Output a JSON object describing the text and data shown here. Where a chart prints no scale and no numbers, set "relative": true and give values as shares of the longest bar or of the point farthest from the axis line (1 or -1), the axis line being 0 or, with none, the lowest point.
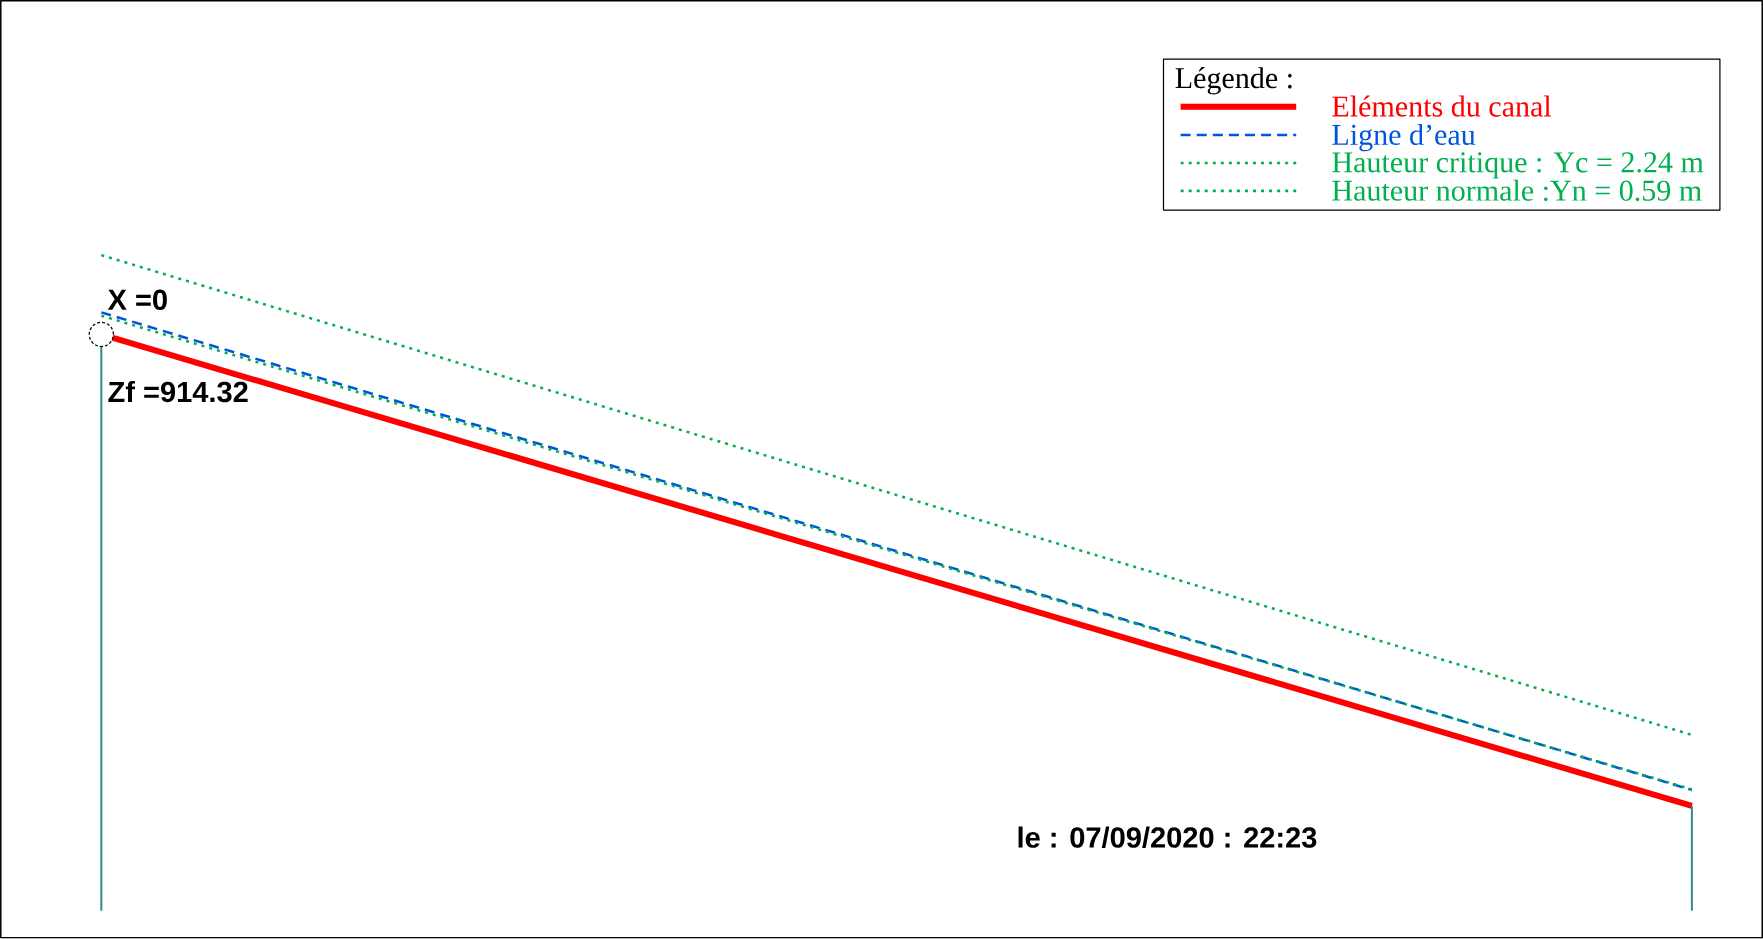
{
  "chart_data": {
    "type": "line",
    "relative": true,
    "categories": [
      null,
      null
    ],
    "series": [
      {
        "name": "Eléments du canal",
        "color": "#ff0000",
        "line_style": "solid",
        "values": [
          0.856,
          0
        ]
      },
      {
        "name": "Ligne d’eau",
        "color": "#0055dd",
        "line_style": "dashed",
        "values": [
          0.896,
          0.029
        ]
      },
      {
        "name": "Hauteur critique : Yc = 2.24 m",
        "color": "#00b050",
        "line_style": "dotted",
        "values": [
          1,
          0.129
        ]
      },
      {
        "name": "Hauteur normale :Yn = 0.59 m",
        "color": "#00b050",
        "line_style": "dotted",
        "values": [
          0.89,
          0.03
        ]
      }
    ],
    "legend": "top right",
    "legend_title": "Légende :",
    "annotations": [
      "X =0",
      "Zf =914.32",
      "le : 07/09/2020 : 22:23"
    ]
  }
}
